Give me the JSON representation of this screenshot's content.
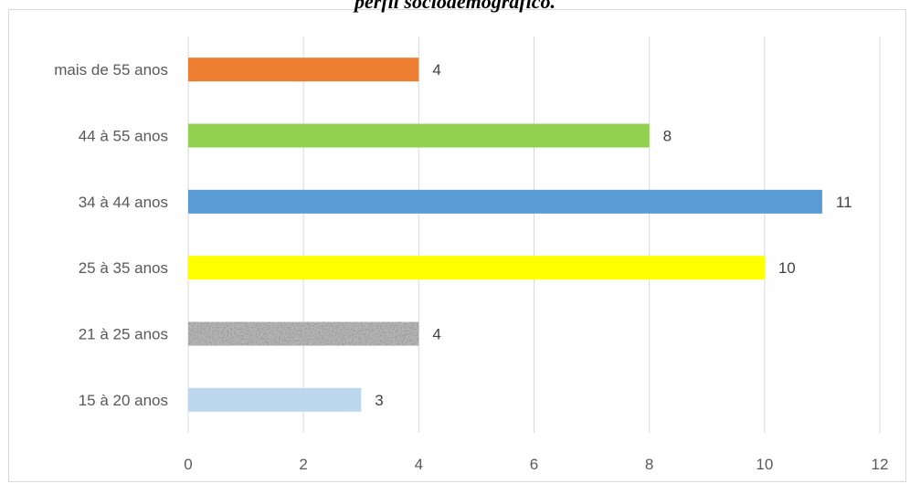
{
  "title": "perfil sociodemográfico.",
  "chart_data": {
    "type": "bar",
    "orientation": "horizontal",
    "title": "perfil sociodemográfico.",
    "categories": [
      "15 à 20 anos",
      "21 à 25 anos",
      "25 à 35 anos",
      "34 à 44 anos",
      "44 à 55 anos",
      "mais de 55 anos"
    ],
    "values": [
      3,
      4,
      10,
      11,
      8,
      4
    ],
    "colors": [
      "#bdd7ee",
      "#8c8c8c",
      "#ffff00",
      "#5b9bd5",
      "#92d050",
      "#ed7d31"
    ],
    "patterns": [
      "solid",
      "granite",
      "solid",
      "solid",
      "solid",
      "solid"
    ],
    "xticks": [
      "0",
      "2",
      "4",
      "6",
      "8",
      "10",
      "12"
    ],
    "xlim": [
      0,
      12
    ],
    "xlabel": "",
    "ylabel": "",
    "grid": "vertical",
    "legend": "none",
    "data_labels": true
  }
}
